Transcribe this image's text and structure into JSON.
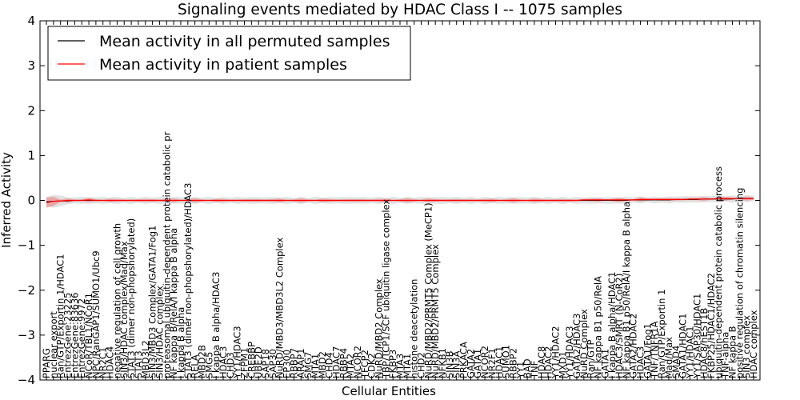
{
  "chart_data": {
    "type": "line",
    "title": "Signaling events mediated by HDAC Class I -- 1075 samples",
    "xlabel": "Cellular Entities",
    "ylabel": "Inferred Activity",
    "ylim": [
      -4,
      4
    ],
    "yticks": [
      -4,
      -3,
      -2,
      -1,
      0,
      1,
      2,
      3,
      4
    ],
    "ytick_labels": [
      "−4",
      "−3",
      "−2",
      "−1",
      "0",
      "1",
      "2",
      "3",
      "4"
    ],
    "legend": {
      "position": "top-left",
      "entries": [
        {
          "label": "Mean activity in all permuted samples",
          "color": "#000000"
        },
        {
          "label": "Mean activity in patient samples",
          "color": "#ff0000"
        }
      ]
    },
    "colors": {
      "patient": "#ff0000",
      "permuted": "#000000",
      "band": "#c8c8c8",
      "patient_band": "#f08080"
    },
    "categories": [
      "PPARG",
      "nuclear export",
      "Ran/GTP/Exportin 1/HDAC1",
      "EntrezGene:23225",
      "EntrezGene:83636",
      "EntrezGene:9972",
      "NCoR/TBL1/NCoR1",
      "NPC/RanGAP1/SUMO1/Ubc9",
      "NR2C1",
      "HDAC4",
      "negative regulation of cell growth",
      "SIN3/HDAC complex/Mad/Max",
      "STAT3 (dimer non-phopshorylated)",
      "STAT3",
      "MBD3L2",
      "SIN3/MBD3 Complex/GATA1/Fog1",
      "SIN3/HDAC complex",
      "proteasomal ubiquitin-dependent protein catabolic pr",
      "NF kappa B/RelA/I kappa B alpha",
      "I kappa B alpha",
      "STAT3 (dimer non-phopshorylated)/HDAC3",
      "RELA",
      "MBD2B",
      "SMG5",
      "I kappa B alpha/HDAC3",
      "HDAC3",
      "CHD3",
      "YY1/HDAC3",
      "ZFPM1",
      "CREBBP",
      "UBE2D",
      "SAP18",
      "SAP30",
      "NuRD/MBD3/MBD3L2 Complex",
      "EP300",
      "RBBP7",
      "ARAP1",
      "SMG7",
      "MTA1",
      "MBD2",
      "CHD4",
      "HDAC7",
      "RBBP4",
      "MTA2",
      "NCOR2",
      "TFCP2",
      "CDK2",
      "NuRD/MBD2 Complex",
      "TBP/TCP1/SCF ubiquitin ligase complex",
      "FKBP3",
      "MTA3",
      "MTA1",
      "histone deacetylation",
      "CHD2",
      "NuRD/MBD2/PRMT5 Complex (MeCP1)",
      "NuRD/MBD2/PRMT5 Complex",
      "NFKB1",
      "SIN3B",
      "SIN3A",
      "PRKACA",
      "GATA2",
      "GATA1",
      "NCOR2",
      "NR2F1",
      "HDAC1",
      "SUMO1",
      "RBBP2",
      "YY1",
      "BAD",
      "TNF",
      "HDAC8",
      "HDAC2",
      "YY1/HDAC2",
      "MXD1",
      "YY1/HDAC3",
      "GATA2/HDAC3",
      "NuRD Complex",
      "Ran/GTP",
      "NF kappa B1 p50/RelA",
      "GATA1",
      "I kappa B alpha/HDAC1",
      "HDAC3/SMRT (N-CoR2)",
      "NF kappa B1 p50/RelA/I kappa B alpha",
      "GATA2/HDAC2",
      "HDAC3",
      "GATA1/Fog1",
      "TNF/TNFR1A",
      "Ran/GTP/Exportin 1",
      "Mad/Max",
      "SMAD4",
      "GATA1/HDAC1",
      "YY1/HDAC1",
      "YY1/SAP30/HDAC1",
      "HDAC8/hEST1B",
      "FKBP25/HDAC1/HDAC2",
      "ubiquitin-dependent protein catabolic process",
      "TNF-alpha",
      "NF kappa B",
      "positive regulation of chromatin silencing",
      "SIN3 complex",
      "HDAC complex"
    ],
    "series": [
      {
        "name": "Mean activity in patient samples",
        "values": [
          -0.05,
          -0.02,
          -0.01,
          0.0,
          0.0,
          0.0,
          0.01,
          0.0,
          0.0,
          0.0,
          0.0,
          0.0,
          0.0,
          0.0,
          0.0,
          0.0,
          0.0,
          0.0,
          0.0,
          0.0,
          0.0,
          0.0,
          0.0,
          0.0,
          0.0,
          0.0,
          0.0,
          0.0,
          0.0,
          0.0,
          0.0,
          0.0,
          0.0,
          0.0,
          0.0,
          0.0,
          0.0,
          0.0,
          0.0,
          0.0,
          0.0,
          0.0,
          0.0,
          0.0,
          0.0,
          0.0,
          0.0,
          0.0,
          0.0,
          0.0,
          0.0,
          0.0,
          0.0,
          0.0,
          0.0,
          0.0,
          0.0,
          0.0,
          0.0,
          0.0,
          0.0,
          0.0,
          0.0,
          0.0,
          0.0,
          0.0,
          0.0,
          0.0,
          0.0,
          0.0,
          0.0,
          0.0,
          0.0,
          0.0,
          0.0,
          0.0,
          0.01,
          0.01,
          0.01,
          0.01,
          0.01,
          0.01,
          0.01,
          0.01,
          0.02,
          0.02,
          0.02,
          0.02,
          0.02,
          0.02,
          0.02,
          0.03,
          0.03,
          0.03,
          0.03,
          0.04,
          0.04,
          0.04,
          0.04,
          0.04,
          0.04
        ]
      },
      {
        "name": "Mean activity in all permuted samples",
        "values": [
          -0.03,
          -0.02,
          -0.01,
          -0.01,
          0.0,
          0.0,
          0.0,
          0.0,
          0.0,
          0.0,
          0.0,
          0.0,
          0.0,
          0.0,
          0.0,
          0.0,
          0.0,
          0.0,
          0.0,
          0.0,
          0.0,
          0.0,
          0.0,
          0.0,
          0.0,
          0.0,
          0.0,
          0.0,
          0.0,
          0.0,
          0.0,
          0.0,
          0.0,
          0.0,
          0.0,
          0.0,
          0.0,
          0.0,
          0.0,
          0.0,
          0.0,
          0.0,
          0.0,
          0.0,
          0.0,
          0.0,
          0.0,
          0.0,
          0.0,
          0.0,
          0.0,
          0.0,
          0.0,
          0.0,
          0.0,
          0.0,
          0.0,
          0.0,
          0.0,
          0.0,
          0.0,
          0.0,
          0.0,
          0.0,
          0.0,
          0.0,
          0.0,
          0.0,
          0.0,
          0.0,
          0.0,
          0.0,
          0.0,
          0.0,
          0.0,
          0.0,
          0.0,
          0.0,
          0.0,
          0.0,
          0.0,
          0.0,
          0.0,
          0.01,
          0.01,
          0.01,
          0.01,
          0.01,
          0.01,
          0.02,
          0.02,
          0.02,
          0.02,
          0.03,
          0.03,
          0.03,
          0.03,
          0.03,
          0.04,
          0.04,
          0.04
        ]
      }
    ]
  }
}
